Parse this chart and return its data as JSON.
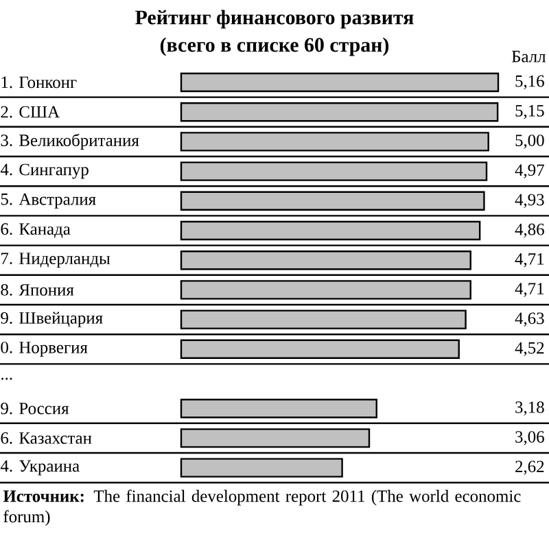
{
  "chart_data": {
    "type": "bar",
    "orientation": "horizontal",
    "title": "Рейтинг финансового развитя",
    "subtitle": "(всего в списке 60 стран)",
    "categories": [
      "1. Гонконг",
      "2. США",
      "3. Великобритания",
      "4. Сингапур",
      "5. Австралия",
      "6. Канада",
      "7. Нидерланды",
      "8. Япония",
      "9. Швейцария",
      "0. Норвегия",
      "...",
      "9. Россия",
      "6. Казахстан",
      "4. Украина"
    ],
    "values": [
      5.16,
      5.15,
      5.0,
      4.97,
      4.93,
      4.86,
      4.71,
      4.71,
      4.63,
      4.52,
      null,
      3.18,
      3.06,
      2.62
    ],
    "value_labels": [
      "5,16",
      "5,15",
      "5,00",
      "4,97",
      "4,93",
      "4,86",
      "4,71",
      "4,71",
      "4,63",
      "4,52",
      null,
      "3,18",
      "3,06",
      "2,62"
    ],
    "color": "#c0c0c0",
    "annotations": [
      "Балл",
      "**Источник:** The financial development report 2011 (The world economic forum)"
    ]
  }
}
